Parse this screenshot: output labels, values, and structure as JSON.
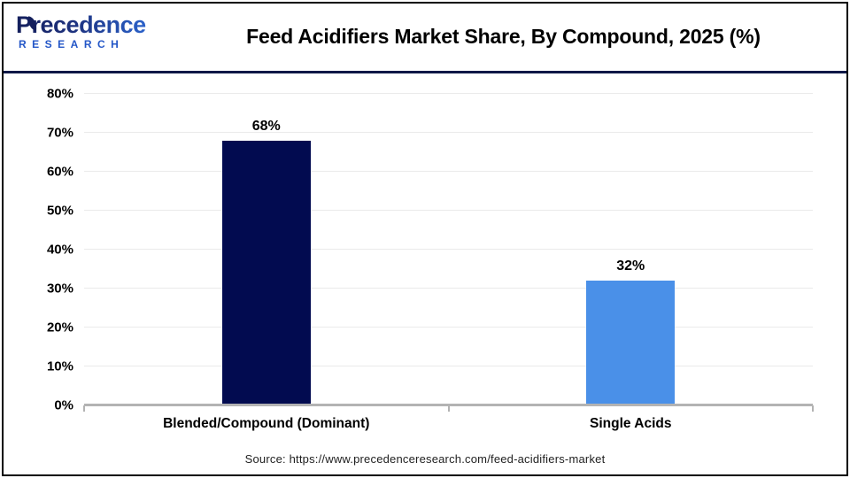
{
  "header": {
    "logo": {
      "line1": "Precedence",
      "line2": "RESEARCH"
    },
    "title": "Feed Acidifiers Market Share, By Compound, 2025 (%)"
  },
  "icons": {
    "logo_leaf": "leaf-icon"
  },
  "colors": {
    "bar_navy": "#020b50",
    "bar_blue": "#4a90e8",
    "header_divider_navy": "#0e1847",
    "gridline": "#eaeaea",
    "axis_gray": "#b3b3b3",
    "logo_dark_navy": "#141f5c",
    "logo_blue": "#2e6fdf",
    "logo_research_blue": "#2356c7"
  },
  "footer": {
    "source": "Source: https://www.precedenceresearch.com/feed-acidifiers-market"
  },
  "chart_data": {
    "type": "bar",
    "title": "Feed Acidifiers Market Share, By Compound, 2025 (%)",
    "categories": [
      "Blended/Compound (Dominant)",
      "Single Acids"
    ],
    "values": [
      68,
      32
    ],
    "data_labels": [
      "68%",
      "32%"
    ],
    "bar_colors": [
      "#020b50",
      "#4a90e8"
    ],
    "xlabel": "",
    "ylabel": "",
    "ylim": [
      0,
      80
    ],
    "ytick_step": 10,
    "ytick_labels": [
      "0%",
      "10%",
      "20%",
      "30%",
      "40%",
      "50%",
      "60%",
      "70%",
      "80%"
    ],
    "grid": true,
    "legend": "none"
  }
}
